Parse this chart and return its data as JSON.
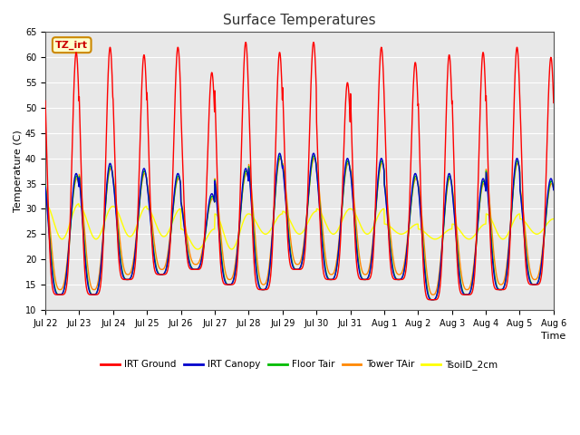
{
  "title": "Surface Temperatures",
  "xlabel": "Time",
  "ylabel": "Temperature (C)",
  "ylim": [
    10,
    65
  ],
  "yticks": [
    10,
    15,
    20,
    25,
    30,
    35,
    40,
    45,
    50,
    55,
    60,
    65
  ],
  "x_tick_labels": [
    "Jul 22",
    "Jul 23",
    "Jul 24",
    "Jul 25",
    "Jul 26",
    "Jul 27",
    "Jul 28",
    "Jul 29",
    "Jul 30",
    "Jul 31",
    "Aug 1",
    "Aug 2",
    "Aug 3",
    "Aug 4",
    "Aug 5",
    "Aug 6"
  ],
  "bg_color": "#e8e8e8",
  "legend": [
    {
      "label": "IRT Ground",
      "color": "#ff0000"
    },
    {
      "label": "IRT Canopy",
      "color": "#0000cc"
    },
    {
      "label": "Floor Tair",
      "color": "#00bb00"
    },
    {
      "label": "Tower TAir",
      "color": "#ff8800"
    },
    {
      "label": "TsoilD_2cm",
      "color": "#ffff00"
    }
  ],
  "annotation_text": "TZ_irt",
  "annotation_color": "#cc0000",
  "annotation_bg": "#ffffcc",
  "annotation_border": "#cc8800",
  "num_days": 15,
  "points_per_day": 96,
  "irt_ground_peaks": [
    61,
    62,
    60.5,
    62,
    57,
    63,
    61,
    63,
    55,
    62,
    59,
    60.5,
    61,
    62,
    60
  ],
  "irt_ground_troughs": [
    13,
    13,
    16,
    17,
    18,
    15,
    14,
    18,
    16,
    16,
    16,
    12,
    13,
    14,
    15
  ],
  "canopy_peaks": [
    37,
    39,
    38,
    37,
    33,
    38,
    41,
    41,
    40,
    40,
    37,
    37,
    36,
    40,
    36
  ],
  "canopy_troughs": [
    13,
    13,
    16,
    17,
    18,
    15,
    14,
    18,
    16,
    16,
    16,
    12,
    13,
    14,
    15
  ],
  "floor_peaks": [
    36.5,
    38.5,
    37.5,
    36.5,
    32.5,
    37.5,
    40.5,
    40.5,
    39.5,
    39.5,
    36.5,
    36.5,
    35.5,
    39.5,
    35.5
  ],
  "floor_troughs": [
    13,
    13,
    16,
    17,
    18,
    15,
    14,
    18,
    16,
    16,
    16,
    12,
    13,
    14,
    15
  ],
  "tower_peaks": [
    36,
    38,
    37,
    36,
    32,
    37,
    40,
    40,
    39,
    39,
    36,
    36,
    35,
    39,
    35
  ],
  "tower_troughs": [
    14,
    14,
    17,
    18,
    19,
    16,
    15,
    19,
    17,
    17,
    17,
    13,
    14,
    15,
    16
  ],
  "soil_peaks": [
    31,
    30.5,
    30.5,
    30,
    26,
    29,
    29,
    29.5,
    30,
    30,
    27,
    26,
    27,
    29,
    28
  ],
  "soil_troughs": [
    24,
    24,
    24.5,
    24.5,
    22,
    22,
    25,
    25,
    25,
    25,
    25,
    24,
    24,
    24,
    25
  ]
}
